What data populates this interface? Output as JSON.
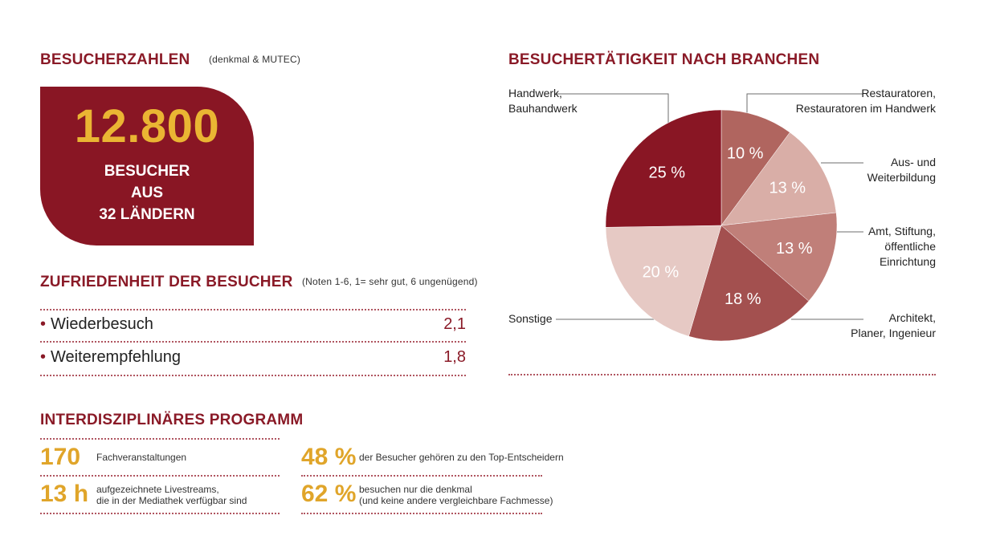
{
  "visitors": {
    "heading": "BESUCHERZAHLEN",
    "note": "(denkmal & MUTEC)",
    "count": "12.800",
    "line1": "BESUCHER",
    "line2": "AUS",
    "line3": "32 LÄNDERN"
  },
  "satisfaction": {
    "heading": "ZUFRIEDENHEIT DER BESUCHER",
    "note": "(Noten 1-6, 1= sehr gut, 6 ungenügend)",
    "rows": [
      {
        "label": "Wiederbesuch",
        "value": "2,1"
      },
      {
        "label": "Weiterempfehlung",
        "value": "1,8"
      }
    ]
  },
  "program": {
    "heading": "INTERDISZIPLINÄRES PROGRAMM",
    "items": [
      {
        "number": "170",
        "text1": "Fachveranstaltungen",
        "text2": ""
      },
      {
        "number": "13 h",
        "text1": "aufgezeichnete Livestreams,",
        "text2": "die in der Mediathek verfügbar sind"
      },
      {
        "number": "48 %",
        "text1": "der Besucher gehören zu den Top-Entscheidern",
        "text2": ""
      },
      {
        "number": "62 %",
        "text1": "besuchen nur die denkmal",
        "text2": "(und keine andere vergleichbare Fachmesse)"
      }
    ]
  },
  "colors": {
    "brand": "#891624",
    "accent": "#e0a52a"
  },
  "chart_data": {
    "type": "pie",
    "title": "BESUCHERTÄTIGKEIT NACH BRANCHEN",
    "start": "12 o'clock, clockwise",
    "slices": [
      {
        "label": "Restauratoren, Restauratoren im Handwerk",
        "value": 10,
        "display": "10 %",
        "color": "#b0655f"
      },
      {
        "label": "Aus- und Weiterbildung",
        "value": 13,
        "display": "13 %",
        "color": "#d9aea7"
      },
      {
        "label": "Amt, Stiftung, öffentliche Einrichtung",
        "value": 13,
        "display": "13 %",
        "color": "#c07f79"
      },
      {
        "label": "Architekt, Planer, Ingenieur",
        "value": 18,
        "display": "18 %",
        "color": "#a3504f"
      },
      {
        "label": "Sonstige",
        "value": 20,
        "display": "20 %",
        "color": "#e6c9c4"
      },
      {
        "label": "Handwerk, Bauhandwerk",
        "value": 25,
        "display": "25 %",
        "color": "#891624"
      }
    ],
    "labels": {
      "restauratoren": [
        "Restauratoren,",
        "Restauratoren im Handwerk"
      ],
      "ausbildung": [
        "Aus- und",
        "Weiterbildung"
      ],
      "amt": [
        "Amt, Stiftung,",
        "öffentliche",
        "Einrichtung"
      ],
      "architekt": [
        "Architekt,",
        "Planer, Ingenieur"
      ],
      "sonstige": [
        "Sonstige"
      ],
      "handwerk": [
        "Handwerk,",
        "Bauhandwerk"
      ]
    }
  }
}
